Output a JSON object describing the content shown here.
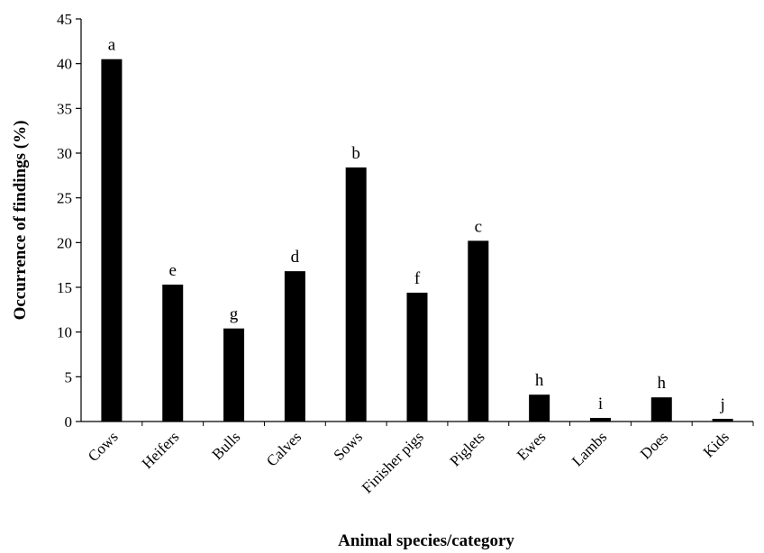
{
  "chart_data": {
    "type": "bar",
    "xlabel": "Animal species/category",
    "ylabel": "Occurrence of findings (%)",
    "ylim": [
      0,
      45
    ],
    "yticks": [
      0,
      5,
      10,
      15,
      20,
      25,
      30,
      35,
      40,
      45
    ],
    "grid": false,
    "legend": "none",
    "bar_color": "#000000",
    "categories": [
      "Cows",
      "Heifers",
      "Bulls",
      "Calves",
      "Sows",
      "Finisher pigs",
      "Piglets",
      "Ewes",
      "Lambs",
      "Does",
      "Kids"
    ],
    "values": [
      40.5,
      15.3,
      10.4,
      16.8,
      28.4,
      14.4,
      20.2,
      3.0,
      0.4,
      2.7,
      0.3
    ],
    "annotations": [
      "a",
      "e",
      "g",
      "d",
      "b",
      "f",
      "c",
      "h",
      "i",
      "h",
      "j"
    ]
  }
}
